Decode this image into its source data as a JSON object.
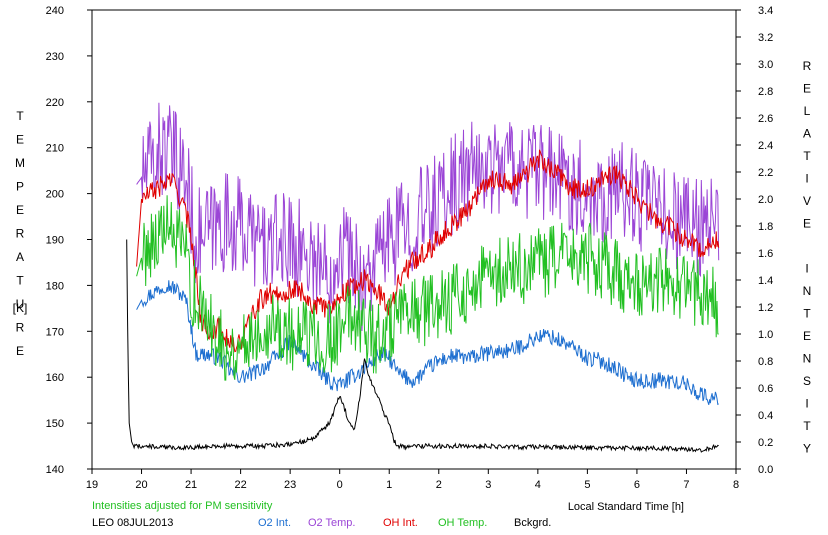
{
  "chart_data": {
    "type": "line",
    "left_axis_label": "TEMPERATURE",
    "left_axis_unit": "[K]",
    "right_axis_label": "RELATIVE INTENSITY",
    "x_label": "Local Standard Time [h]",
    "note": "Intensities adjusted for PM sensitivity",
    "station_date": "LEO 08JUL2013",
    "x_ticks": [
      "19",
      "20",
      "21",
      "22",
      "23",
      "0",
      "1",
      "2",
      "3",
      "4",
      "5",
      "6",
      "7",
      "8"
    ],
    "y_left_ticks": [
      "140",
      "150",
      "160",
      "170",
      "180",
      "190",
      "200",
      "210",
      "220",
      "230",
      "240"
    ],
    "y_right_ticks": [
      "0.0",
      "0.2",
      "0.4",
      "0.6",
      "0.8",
      "1.0",
      "1.2",
      "1.4",
      "1.6",
      "1.8",
      "2.0",
      "2.2",
      "2.4",
      "2.6",
      "2.8",
      "3.0",
      "3.2",
      "3.4"
    ],
    "x_range": [
      19,
      32
    ],
    "y_left_range": [
      140,
      240
    ],
    "y_right_range": [
      0,
      3.4
    ],
    "grid": false,
    "colors": {
      "o2_int": "#1e6fd0",
      "o2_temp": "#9b45d6",
      "oh_int": "#e00000",
      "oh_temp": "#22c022",
      "bckgrd": "#000000",
      "note": "#22c022"
    },
    "series": [
      {
        "name": "O2 Int.",
        "axis": "right",
        "color": "#1e6fd0",
        "amp": 0.06,
        "x": [
          19.9,
          20.0,
          20.3,
          20.5,
          20.7,
          20.9,
          21.0,
          21.1,
          21.3,
          21.6,
          21.8,
          22.0,
          22.2,
          22.5,
          22.8,
          23.0,
          23.2,
          23.5,
          23.8,
          24.0,
          24.2,
          24.4,
          24.6,
          24.8,
          25.0,
          25.2,
          25.5,
          25.8,
          26.0,
          26.3,
          26.6,
          26.9,
          27.2,
          27.5,
          27.8,
          28.0,
          28.2,
          28.5,
          28.8,
          29.0,
          29.3,
          29.6,
          29.9,
          30.2,
          30.5,
          30.8,
          31.0,
          31.2,
          31.5,
          31.65
        ],
        "y": [
          1.18,
          1.25,
          1.32,
          1.37,
          1.33,
          1.25,
          1.05,
          0.85,
          0.85,
          0.82,
          0.72,
          0.68,
          0.7,
          0.76,
          0.86,
          0.95,
          0.87,
          0.75,
          0.65,
          0.62,
          0.67,
          0.72,
          0.78,
          0.85,
          0.82,
          0.7,
          0.65,
          0.75,
          0.8,
          0.84,
          0.82,
          0.85,
          0.87,
          0.88,
          0.94,
          0.98,
          0.99,
          0.94,
          0.88,
          0.82,
          0.8,
          0.74,
          0.66,
          0.65,
          0.66,
          0.64,
          0.63,
          0.57,
          0.52,
          0.52
        ]
      },
      {
        "name": "O2 Temp.",
        "axis": "left",
        "color": "#9b45d6",
        "amp": 11,
        "x": [
          19.9,
          20.1,
          20.4,
          20.7,
          20.9,
          21.1,
          21.4,
          21.7,
          22.0,
          22.3,
          22.6,
          22.9,
          23.2,
          23.5,
          23.8,
          24.0,
          24.2,
          24.5,
          24.7,
          24.9,
          25.2,
          25.5,
          25.8,
          26.1,
          26.4,
          26.7,
          27.0,
          27.4,
          27.8,
          28.2,
          28.6,
          29.0,
          29.4,
          29.8,
          30.2,
          30.6,
          31.0,
          31.3,
          31.65
        ],
        "y": [
          202,
          205,
          210,
          207,
          203,
          190,
          192,
          194,
          193,
          190,
          188,
          190,
          188,
          186,
          182,
          190,
          186,
          180,
          185,
          188,
          192,
          194,
          196,
          200,
          203,
          205,
          206,
          207,
          205,
          204,
          203,
          200,
          200,
          201,
          197,
          195,
          194,
          193,
          193
        ]
      },
      {
        "name": "OH Int.",
        "axis": "right",
        "color": "#e00000",
        "amp": 0.08,
        "x": [
          19.9,
          20.0,
          20.2,
          20.4,
          20.6,
          20.8,
          21.0,
          21.2,
          21.4,
          21.6,
          21.8,
          22.0,
          22.2,
          22.4,
          22.6,
          22.8,
          23.0,
          23.2,
          23.5,
          23.8,
          24.0,
          24.2,
          24.5,
          24.8,
          25.0,
          25.2,
          25.5,
          25.8,
          26.0,
          26.3,
          26.6,
          26.9,
          27.2,
          27.5,
          27.8,
          28.0,
          28.3,
          28.6,
          28.9,
          29.2,
          29.5,
          29.8,
          30.1,
          30.4,
          30.7,
          31.0,
          31.3,
          31.65
        ],
        "y": [
          1.5,
          2.0,
          2.05,
          2.1,
          2.15,
          2.0,
          1.75,
          1.1,
          1.02,
          1.05,
          0.92,
          0.92,
          1.1,
          1.25,
          1.3,
          1.3,
          1.32,
          1.33,
          1.2,
          1.2,
          1.28,
          1.35,
          1.4,
          1.3,
          1.2,
          1.4,
          1.55,
          1.62,
          1.72,
          1.82,
          1.92,
          2.12,
          2.15,
          2.1,
          2.2,
          2.3,
          2.22,
          2.1,
          2.05,
          2.1,
          2.2,
          2.1,
          1.95,
          1.85,
          1.78,
          1.7,
          1.63,
          1.7
        ]
      },
      {
        "name": "OH Temp.",
        "axis": "left",
        "color": "#22c022",
        "amp": 8,
        "x": [
          19.9,
          20.0,
          20.2,
          20.5,
          20.7,
          20.9,
          21.0,
          21.2,
          21.5,
          21.8,
          22.0,
          22.3,
          22.6,
          22.9,
          23.2,
          23.5,
          23.8,
          24.0,
          24.2,
          24.5,
          24.7,
          24.9,
          25.2,
          25.5,
          25.8,
          26.1,
          26.4,
          26.7,
          27.0,
          27.4,
          27.8,
          28.2,
          28.6,
          29.0,
          29.4,
          29.8,
          30.2,
          30.6,
          31.0,
          31.3,
          31.65
        ],
        "y": [
          182,
          186,
          190,
          192,
          190,
          186,
          180,
          174,
          170,
          165,
          167,
          170,
          172,
          170,
          168,
          170,
          168,
          170,
          174,
          172,
          168,
          170,
          172,
          174,
          175,
          176,
          178,
          180,
          182,
          183,
          184,
          185,
          186,
          186,
          184,
          181,
          181,
          181,
          180,
          178,
          176
        ]
      },
      {
        "name": "Bckgrd.",
        "axis": "left",
        "color": "#000000",
        "amp": 0.5,
        "x": [
          19.7,
          19.72,
          19.75,
          19.8,
          19.85,
          19.9,
          20.0,
          20.5,
          21.0,
          21.5,
          22.0,
          22.5,
          23.0,
          23.3,
          23.5,
          23.8,
          24.0,
          24.2,
          24.3,
          24.35,
          24.4,
          24.5,
          24.6,
          24.8,
          24.9,
          25.0,
          25.1,
          25.2,
          25.3,
          25.5,
          26.0,
          26.5,
          27.0,
          27.5,
          28.0,
          28.5,
          29.0,
          29.5,
          30.0,
          30.5,
          31.0,
          31.3,
          31.5,
          31.65
        ],
        "y": [
          190,
          170,
          150,
          146,
          145,
          145,
          145,
          144.7,
          144.7,
          145,
          145,
          145,
          145.5,
          146,
          147,
          150,
          156,
          150,
          148.5,
          152,
          155,
          164,
          160,
          155,
          152,
          150,
          146,
          145,
          144.8,
          145,
          145,
          145,
          145,
          144.8,
          144.8,
          144.7,
          144.7,
          144.6,
          144.5,
          144.5,
          144.3,
          144.2,
          144.6,
          145
        ]
      }
    ]
  }
}
